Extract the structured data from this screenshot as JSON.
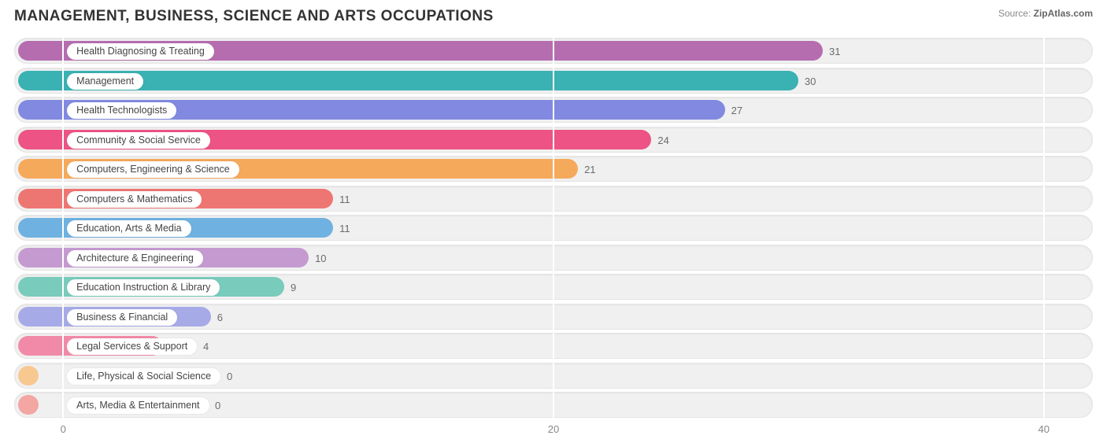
{
  "title": "MANAGEMENT, BUSINESS, SCIENCE AND ARTS OCCUPATIONS",
  "source_prefix": "Source: ",
  "source_name": "ZipAtlas.com",
  "chart": {
    "type": "bar-horizontal",
    "x_min": -2,
    "x_max": 42,
    "x_ticks": [
      0,
      20,
      40
    ],
    "track_bg": "#f0f0f0",
    "track_border": "#e4e4e4",
    "grid_color": "#ffffff",
    "value_label_color": "#6b6b6b",
    "axis_label_color": "#888888",
    "label_origin_value": 0,
    "label_pill_bg": "#ffffff",
    "series": [
      {
        "label": "Health Diagnosing & Treating",
        "value": 31,
        "color": "#b56db0"
      },
      {
        "label": "Management",
        "value": 30,
        "color": "#3ab1b3"
      },
      {
        "label": "Health Technologists",
        "value": 27,
        "color": "#8189e0"
      },
      {
        "label": "Community & Social Service",
        "value": 24,
        "color": "#ed5384"
      },
      {
        "label": "Computers, Engineering & Science",
        "value": 21,
        "color": "#f5a95b"
      },
      {
        "label": "Computers & Mathematics",
        "value": 11,
        "color": "#ee7672"
      },
      {
        "label": "Education, Arts & Media",
        "value": 11,
        "color": "#6fb1e0"
      },
      {
        "label": "Architecture & Engineering",
        "value": 10,
        "color": "#c49ad0"
      },
      {
        "label": "Education Instruction & Library",
        "value": 9,
        "color": "#79cbbb"
      },
      {
        "label": "Business & Financial",
        "value": 6,
        "color": "#a6aae6"
      },
      {
        "label": "Legal Services & Support",
        "value": 4,
        "color": "#f18aa8"
      },
      {
        "label": "Life, Physical & Social Science",
        "value": 0,
        "color": "#f8c891"
      },
      {
        "label": "Arts, Media & Entertainment",
        "value": 0,
        "color": "#f3a6a2"
      }
    ]
  }
}
